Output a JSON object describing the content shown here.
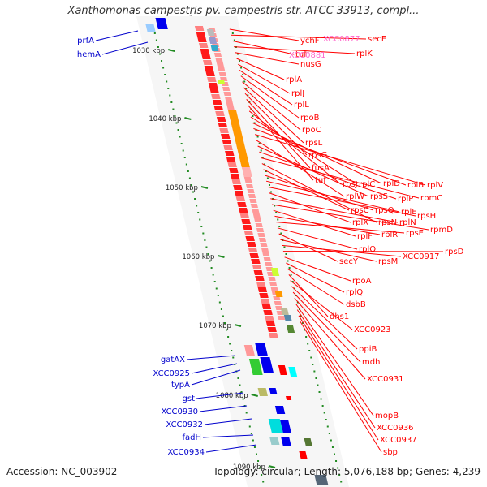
{
  "map": {
    "title": "Xanthomonas campestris pv. campestris str. ATCC 33913, compl...",
    "accession": "Accession: NC_003902",
    "summary": "Topology: circular; Length: 5,076,188 bp; Genes: 4,239"
  },
  "colors": {
    "right_gene": "#ff0000",
    "left_gene": "#0000cc",
    "pink_gene": "#ff66cc",
    "tick": "#228b22",
    "backbone": "#999999"
  },
  "kbp_ticks": [
    "1030 kbp",
    "1040 kbp",
    "1050 kbp",
    "1060 kbp",
    "1070 kbp",
    "1080 kbp",
    "1090 kbp"
  ],
  "left_genes": [
    "prfA",
    "hemA",
    "gatAX",
    "XCC0925",
    "typA",
    "gst",
    "XCC0930",
    "XCC0932",
    "fadH",
    "XCC0934"
  ],
  "right_genes": [
    "ychF",
    "secE",
    "tuf",
    "rplK",
    "nusG",
    "rplA",
    "rplJ",
    "rplL",
    "rpoB",
    "rpoC",
    "rpsL",
    "rpsG",
    "fusA",
    "tuf",
    "rpsJ",
    "rplC",
    "rplD",
    "rplB",
    "rplV",
    "rplW",
    "rpsS",
    "rplP",
    "rpmC",
    "rpsN",
    "rpsC",
    "rpsQ",
    "rplE",
    "rpsH",
    "rplX",
    "rplN",
    "rpmD",
    "rplF",
    "rplR",
    "rpsE",
    "rplO",
    "secY",
    "rpsM",
    "XCC0917",
    "rpsD",
    "rpoA",
    "rplQ",
    "dsbB",
    "dhs1",
    "XCC0923",
    "ppiB",
    "mdh",
    "XCC0931",
    "mopB",
    "XCC0936",
    "XCC0937",
    "sbp"
  ],
  "pink_genes": [
    "XCC0877",
    "XCC0881"
  ]
}
